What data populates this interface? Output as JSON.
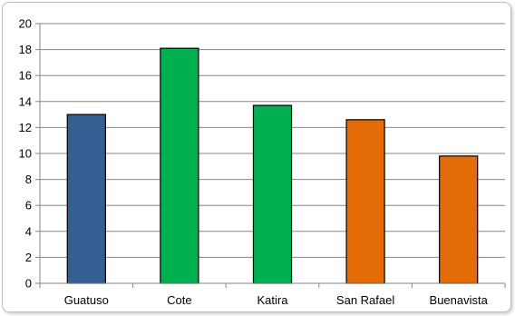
{
  "chart_data": {
    "type": "bar",
    "categories": [
      "Guatuso",
      "Cote",
      "Katira",
      "San Rafael",
      "Buenavista"
    ],
    "values": [
      13.0,
      18.1,
      13.7,
      12.6,
      9.8
    ],
    "bar_colors": [
      "#355F93",
      "#00B050",
      "#00B050",
      "#E36C09",
      "#E36C09"
    ],
    "title": "",
    "xlabel": "",
    "ylabel": "",
    "ylim": [
      0,
      20
    ],
    "yticks": [
      0,
      2,
      4,
      6,
      8,
      10,
      12,
      14,
      16,
      18,
      20
    ],
    "grid": true,
    "legend": "none"
  }
}
